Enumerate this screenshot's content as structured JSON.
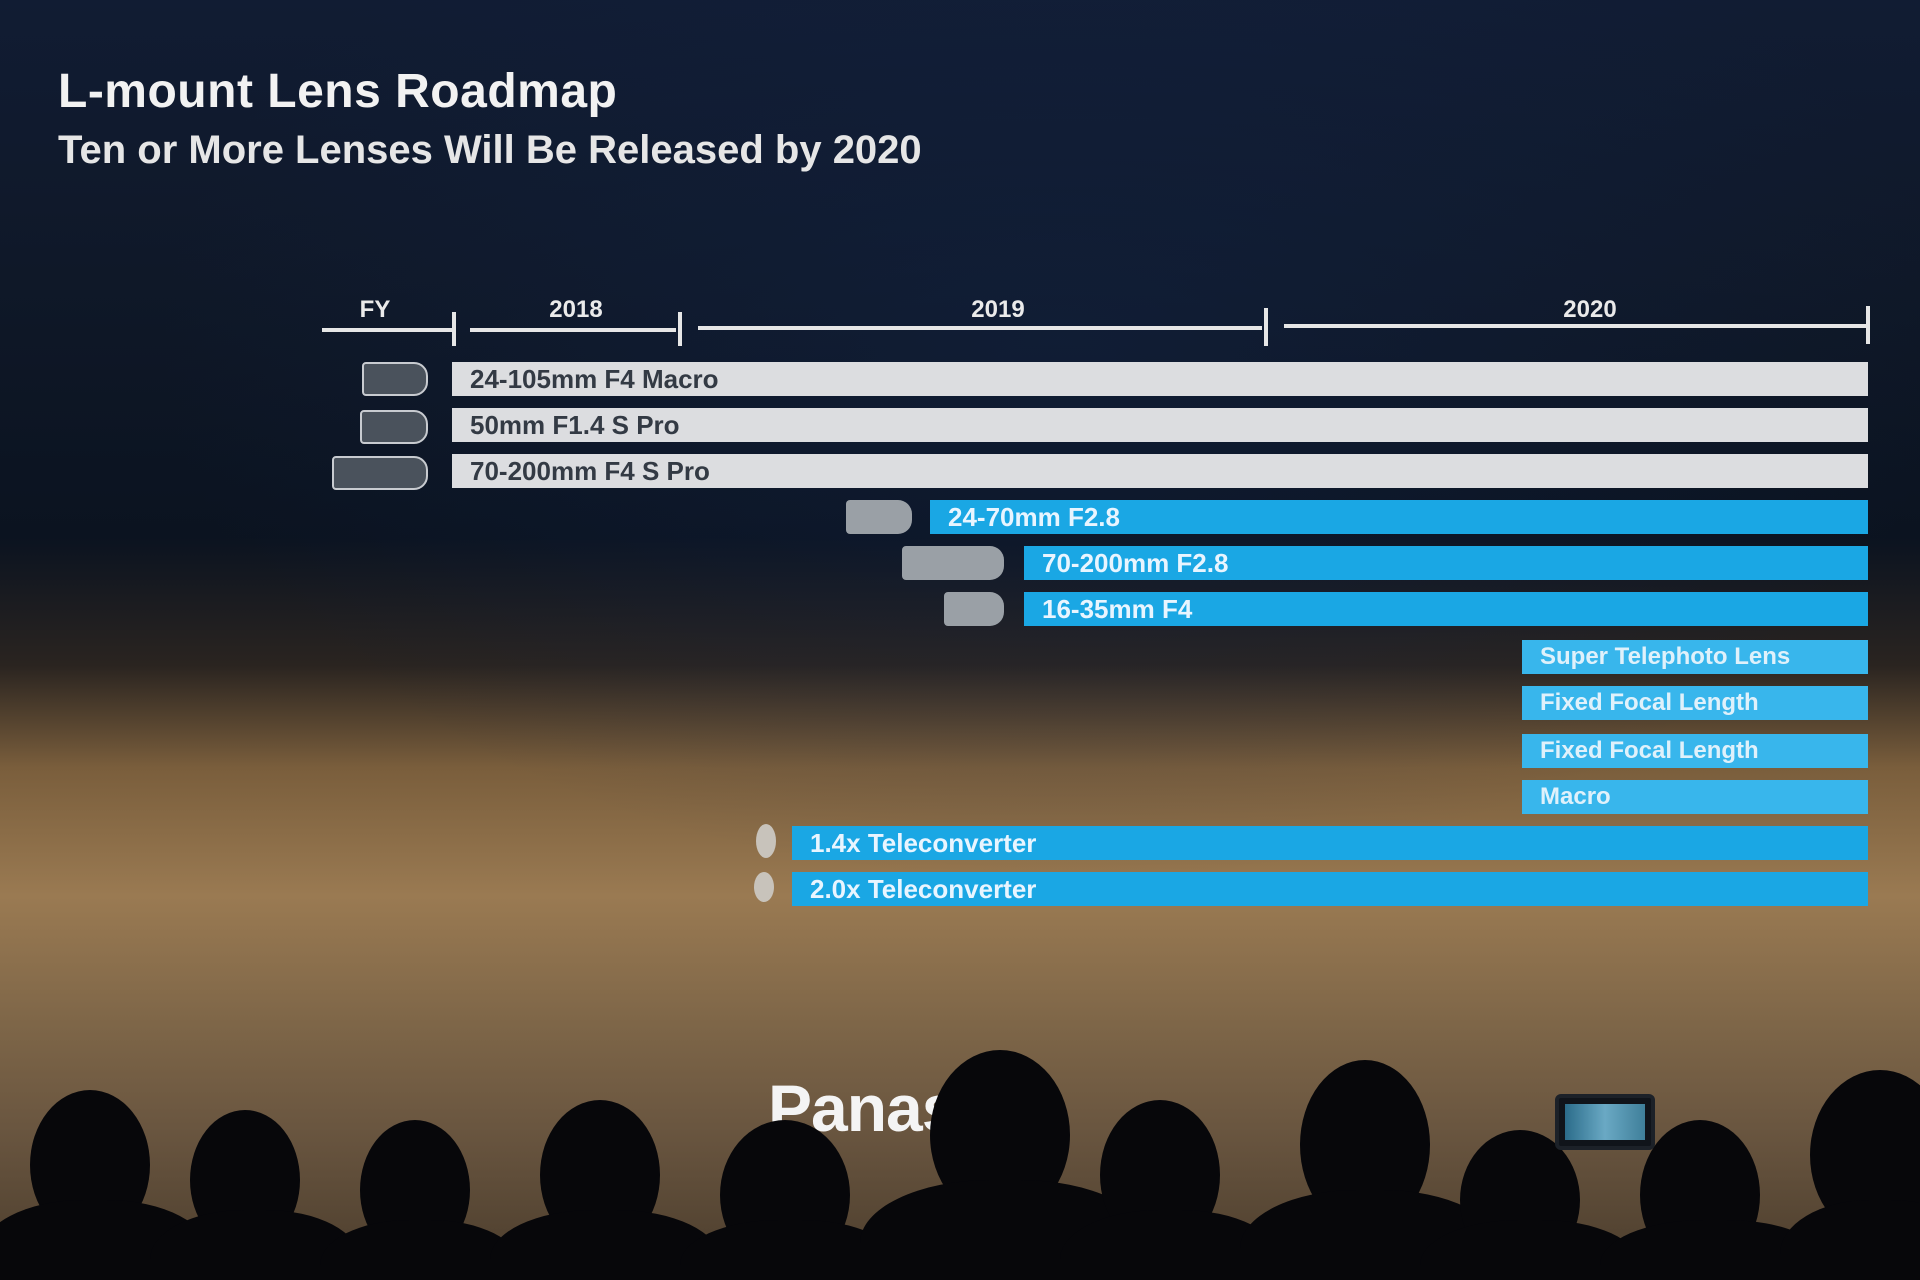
{
  "slide": {
    "title": "L-mount Lens Roadmap",
    "subtitle": "Ten or More Lenses Will Be Released by 2020"
  },
  "timeline": {
    "fy_label": "FY",
    "years": [
      "2018",
      "2019",
      "2020"
    ]
  },
  "lenses": [
    {
      "label": "24-105mm F4 Macro",
      "style": "grey",
      "icon": "lens-icon"
    },
    {
      "label": "50mm F1.4 S Pro",
      "style": "grey",
      "icon": "lens-icon"
    },
    {
      "label": "70-200mm F4 S Pro",
      "style": "grey",
      "icon": "lens-icon"
    },
    {
      "label": "24-70mm F2.8",
      "style": "blue",
      "icon": "lens-silhouette-icon"
    },
    {
      "label": "70-200mm F2.8",
      "style": "blue",
      "icon": "lens-silhouette-icon"
    },
    {
      "label": "16-35mm F4",
      "style": "blue",
      "icon": "lens-silhouette-icon"
    },
    {
      "label": "Super Telephoto Lens",
      "style": "lightblue"
    },
    {
      "label": "Fixed Focal Length",
      "style": "lightblue"
    },
    {
      "label": "Fixed Focal Length",
      "style": "lightblue"
    },
    {
      "label": "Macro",
      "style": "lightblue"
    },
    {
      "label": "1.4x Teleconverter",
      "style": "blue",
      "icon": "teleconverter-icon"
    },
    {
      "label": "2.0x Teleconverter",
      "style": "blue",
      "icon": "teleconverter-icon"
    }
  ],
  "stage": {
    "logo_text": "Panas"
  },
  "colors": {
    "grey_bar": "#dcdde0",
    "blue_bar": "#1aa7e4",
    "light_blue_bar": "#38b6ec"
  }
}
